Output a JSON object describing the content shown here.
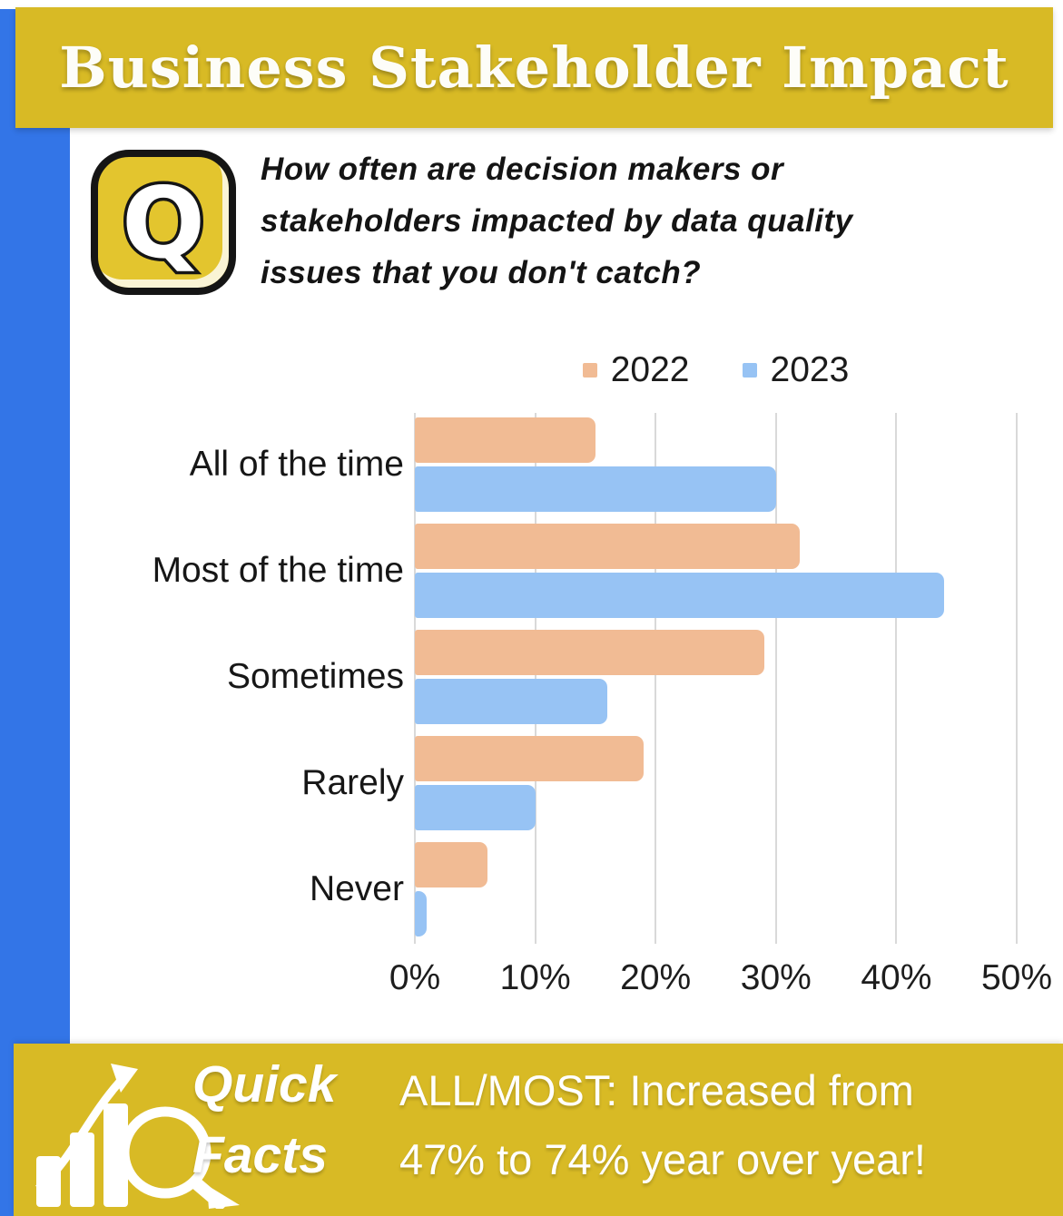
{
  "header": {
    "title": "Business Stakeholder Impact"
  },
  "question": {
    "icon_letter": "Q",
    "lines": [
      "How often are decision makers or",
      "stakeholders impacted by data quality",
      "issues that you don't catch?"
    ]
  },
  "chart_data": {
    "type": "bar",
    "orientation": "horizontal",
    "categories": [
      "All of the time",
      "Most of the time",
      "Sometimes",
      "Rarely",
      "Never"
    ],
    "series": [
      {
        "name": "2022",
        "color": "#f1bb94",
        "values": [
          15,
          32,
          29,
          19,
          6
        ]
      },
      {
        "name": "2023",
        "color": "#97c3f4",
        "values": [
          30,
          44,
          16,
          10,
          1
        ]
      }
    ],
    "xlim": [
      0,
      50
    ],
    "x_ticks": [
      "0%",
      "10%",
      "20%",
      "30%",
      "40%",
      "50%"
    ],
    "grid": true,
    "legend_position": "top"
  },
  "footer": {
    "label_line1": "Quick",
    "label_line2": "Facts",
    "fact_line1": "ALL/MOST: Increased from",
    "fact_line2": "47% to 74% year over year!"
  },
  "colors": {
    "banner_gold": "#d8ba25",
    "accent_blue": "#3375e7",
    "icon_gold": "#e3c52e",
    "series_2022": "#f1bb94",
    "series_2023": "#97c3f4",
    "gridline": "#d9d9d9"
  }
}
